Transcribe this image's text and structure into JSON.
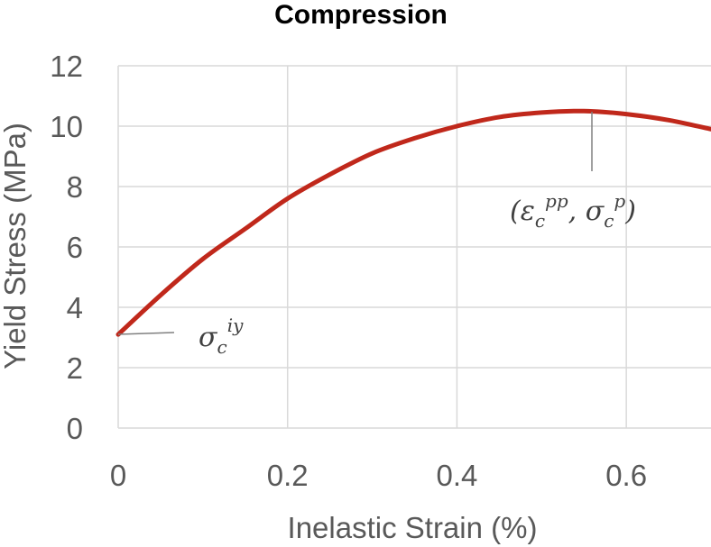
{
  "chart_data": {
    "type": "line",
    "title": "Compression",
    "xlabel": "Inelastic Strain (%)",
    "ylabel": "Yield Stress (MPa)",
    "xlim": [
      0,
      0.7
    ],
    "ylim": [
      0,
      12
    ],
    "x_ticks": [
      "0",
      "0.2",
      "0.4",
      "0.6"
    ],
    "y_ticks": [
      "0",
      "2",
      "4",
      "6",
      "8",
      "10",
      "12"
    ],
    "grid": true,
    "series": [
      {
        "color": "#C0281B",
        "x": [
          0,
          0.05,
          0.1,
          0.15,
          0.2,
          0.25,
          0.3,
          0.35,
          0.4,
          0.45,
          0.5,
          0.55,
          0.6,
          0.65,
          0.7
        ],
        "y": [
          3.1,
          4.4,
          5.6,
          6.6,
          7.6,
          8.4,
          9.1,
          9.6,
          10.0,
          10.3,
          10.45,
          10.5,
          10.4,
          10.2,
          9.9
        ]
      }
    ],
    "annotations": [
      {
        "id": "peak",
        "base": "(ε",
        "sub1": "c",
        "sup1": "pp",
        "mid": ", σ",
        "sub2": "c",
        "sup2": "p",
        "close": ")",
        "x": 0.56,
        "y": 10.5
      },
      {
        "id": "initial",
        "base": "σ",
        "sub1": "c",
        "sup1": "iy",
        "x": 0,
        "y": 3.1
      }
    ]
  }
}
